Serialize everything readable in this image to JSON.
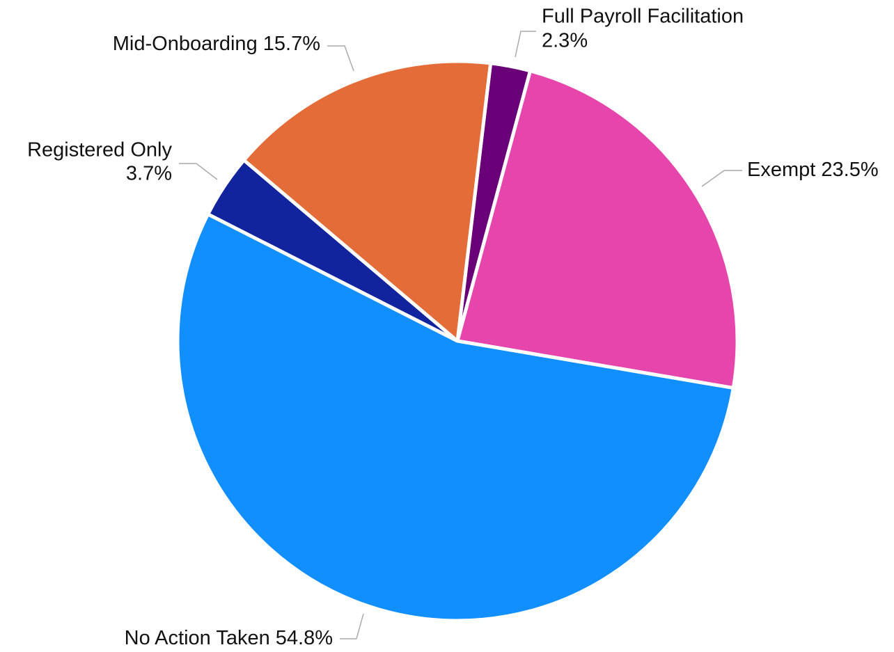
{
  "chart_data": {
    "type": "pie",
    "categories": [
      "Full Payroll Facilitation",
      "Exempt",
      "No Action Taken",
      "Registered Only",
      "Mid-Onboarding"
    ],
    "values": [
      2.3,
      23.5,
      54.8,
      3.7,
      15.7
    ],
    "value_labels": [
      "2.3%",
      "23.5%",
      "54.8%",
      "3.7%",
      "15.7%"
    ],
    "colors": [
      "#6a0078",
      "#e645ab",
      "#128ffe",
      "#12239e",
      "#e46c38"
    ]
  }
}
